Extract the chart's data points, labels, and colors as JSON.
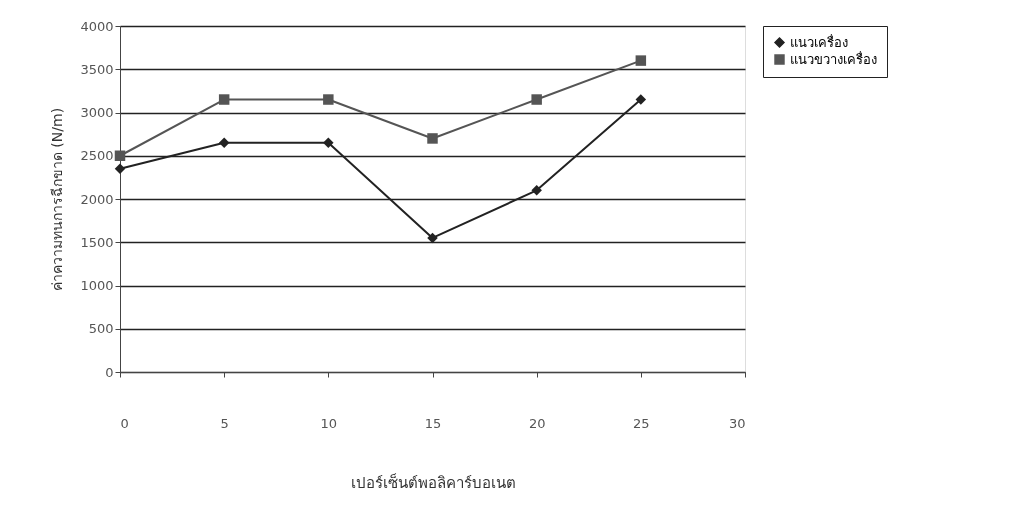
{
  "chart_data": {
    "type": "line",
    "xlabel": "เปอร์เซ็นต์พอลิคาร์บอเนต",
    "ylabel": "ค่าความทนการฉีกขาด (N/m)",
    "x": [
      0,
      5,
      10,
      15,
      20,
      25
    ],
    "series": [
      {
        "name": "แนวเครื่อง",
        "color": "#222222",
        "marker": "diamond",
        "values": [
          2350,
          2650,
          2650,
          1550,
          2100,
          3150
        ]
      },
      {
        "name": "แนวขวางเครื่อง",
        "color": "#555555",
        "marker": "square",
        "values": [
          2500,
          3150,
          3150,
          2700,
          3150,
          3600
        ]
      }
    ],
    "xlim": [
      0,
      30
    ],
    "xticks": [
      0,
      5,
      10,
      15,
      20,
      25,
      30
    ],
    "ylim": [
      0,
      4000
    ],
    "yticks": [
      0,
      500,
      1000,
      1500,
      2000,
      2500,
      3000,
      3500,
      4000
    ],
    "grid": "y",
    "legend": "right",
    "line_style": "solid"
  }
}
